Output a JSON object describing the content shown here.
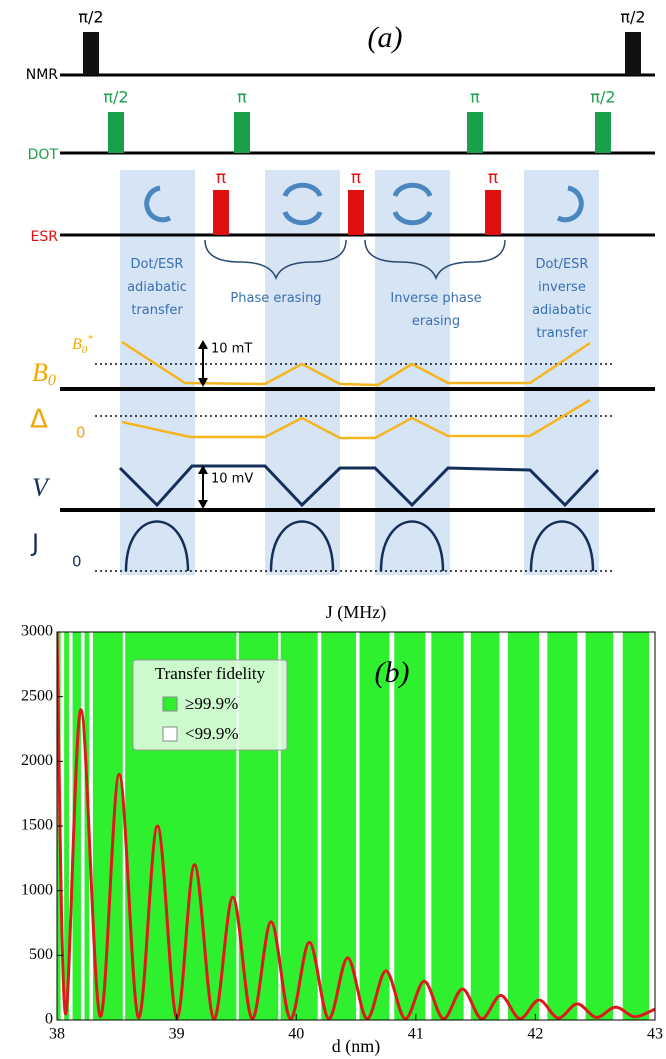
{
  "diagram": {
    "panel_label": "(a)",
    "rows": [
      "NMR",
      "DOT",
      "ESR"
    ],
    "pulses": {
      "nmr": [
        "π/2",
        "π/2"
      ],
      "dot": [
        "π/2",
        "π",
        "π",
        "π/2"
      ],
      "esr": [
        "π",
        "π",
        "π"
      ]
    },
    "stages": [
      [
        "Dot/ESR",
        "adiabatic",
        "transfer"
      ],
      [
        "Phase erasing"
      ],
      [
        "Inverse phase",
        "erasing"
      ],
      [
        "Dot/ESR",
        "inverse",
        "adiabatic",
        "transfer"
      ]
    ],
    "traces": {
      "b0": [
        "B",
        "0"
      ],
      "b0_star": [
        "B",
        "0",
        "*"
      ],
      "delta": "Δ",
      "delta_zero": "0",
      "v": "V",
      "j": "J",
      "j_zero": "0"
    },
    "scale_bars": [
      "10 mT",
      "10 mV"
    ]
  },
  "chart_data": {
    "type": "line",
    "title": "J (MHz)",
    "panel_label": "(b)",
    "x_label": "d (nm)",
    "x": [
      38.0,
      38.07,
      38.2,
      38.36,
      38.52,
      38.68,
      38.84,
      39.0,
      39.15,
      39.31,
      39.47,
      39.63,
      39.79,
      39.95,
      40.11,
      40.27,
      40.43,
      40.59,
      40.75,
      40.91,
      41.07,
      41.23,
      41.39,
      41.55,
      41.71,
      41.87,
      42.03,
      42.19,
      42.35,
      42.51,
      42.67,
      42.83,
      42.99,
      43.0
    ],
    "values": [
      3000,
      50,
      2400,
      30,
      1900,
      20,
      1500,
      15,
      1200,
      10,
      950,
      10,
      760,
      10,
      600,
      10,
      480,
      10,
      380,
      10,
      300,
      10,
      240,
      10,
      190,
      10,
      155,
      15,
      125,
      20,
      100,
      25,
      80,
      75
    ],
    "color": "#dd1a1a",
    "xlim": [
      38,
      43
    ],
    "xticks": [
      38,
      39,
      40,
      41,
      42,
      43
    ],
    "ylim": [
      0,
      3000
    ],
    "yticks": [
      0,
      500,
      1000,
      1500,
      2000,
      2500,
      3000
    ],
    "legend_title": "Transfer fidelity",
    "regions": {
      "high": {
        "name": "≥99.9%",
        "color": "#2ef02e"
      },
      "low": {
        "name": "<99.9%",
        "color": "#ffffff",
        "intervals": [
          [
            38.03,
            38.06
          ],
          [
            38.1,
            38.13
          ],
          [
            38.2,
            38.23
          ],
          [
            38.27,
            38.3
          ],
          [
            38.55,
            38.57
          ],
          [
            39.5,
            39.52
          ],
          [
            39.85,
            39.87
          ],
          [
            40.18,
            40.21
          ],
          [
            40.5,
            40.53
          ],
          [
            40.78,
            40.82
          ],
          [
            41.08,
            41.13
          ],
          [
            41.4,
            41.46
          ],
          [
            41.7,
            41.77
          ],
          [
            42.03,
            42.1
          ],
          [
            42.35,
            42.42
          ],
          [
            42.65,
            42.73
          ],
          [
            42.95,
            43.0
          ]
        ]
      }
    }
  }
}
